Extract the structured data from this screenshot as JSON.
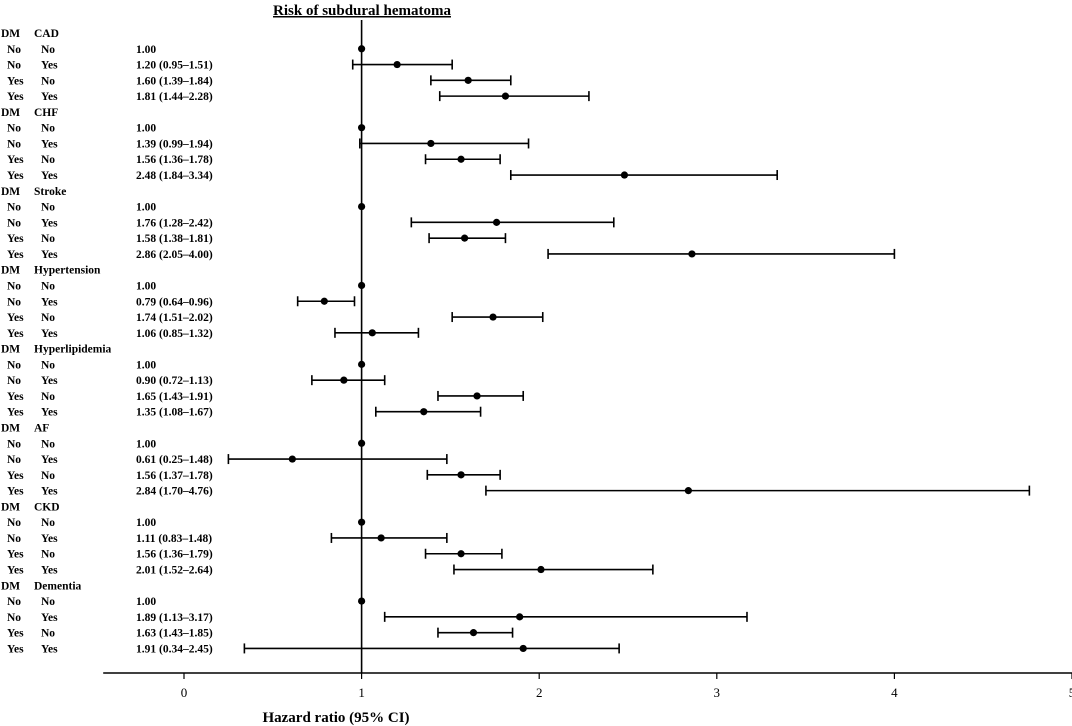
{
  "chart_data": {
    "type": "forest",
    "title": "Risk of subdural hematoma",
    "xlabel": "Hazard ratio (95% CI)",
    "xlim": [
      -0.5,
      5
    ],
    "xticks": [
      0,
      1,
      2,
      3,
      4,
      5
    ],
    "reference_line": 1,
    "column_header": "DM",
    "groups": [
      {
        "header": "CAD",
        "rows": [
          {
            "dm": "No",
            "cov": "No",
            "label": "1.00",
            "hr": 1.0,
            "lo": null,
            "hi": null
          },
          {
            "dm": "No",
            "cov": "Yes",
            "label": "1.20 (0.95–1.51)",
            "hr": 1.2,
            "lo": 0.95,
            "hi": 1.51
          },
          {
            "dm": "Yes",
            "cov": "No",
            "label": "1.60 (1.39–1.84)",
            "hr": 1.6,
            "lo": 1.39,
            "hi": 1.84
          },
          {
            "dm": "Yes",
            "cov": "Yes",
            "label": "1.81 (1.44–2.28)",
            "hr": 1.81,
            "lo": 1.44,
            "hi": 2.28
          }
        ]
      },
      {
        "header": "CHF",
        "rows": [
          {
            "dm": "No",
            "cov": "No",
            "label": "1.00",
            "hr": 1.0,
            "lo": null,
            "hi": null
          },
          {
            "dm": "No",
            "cov": "Yes",
            "label": "1.39 (0.99–1.94)",
            "hr": 1.39,
            "lo": 0.99,
            "hi": 1.94
          },
          {
            "dm": "Yes",
            "cov": "No",
            "label": "1.56 (1.36–1.78)",
            "hr": 1.56,
            "lo": 1.36,
            "hi": 1.78
          },
          {
            "dm": "Yes",
            "cov": "Yes",
            "label": "2.48 (1.84–3.34)",
            "hr": 2.48,
            "lo": 1.84,
            "hi": 3.34
          }
        ]
      },
      {
        "header": "Stroke",
        "rows": [
          {
            "dm": "No",
            "cov": "No",
            "label": "1.00",
            "hr": 1.0,
            "lo": null,
            "hi": null
          },
          {
            "dm": "No",
            "cov": "Yes",
            "label": "1.76 (1.28–2.42)",
            "hr": 1.76,
            "lo": 1.28,
            "hi": 2.42
          },
          {
            "dm": "Yes",
            "cov": "No",
            "label": "1.58 (1.38–1.81)",
            "hr": 1.58,
            "lo": 1.38,
            "hi": 1.81
          },
          {
            "dm": "Yes",
            "cov": "Yes",
            "label": "2.86 (2.05–4.00)",
            "hr": 2.86,
            "lo": 2.05,
            "hi": 4.0
          }
        ]
      },
      {
        "header": "Hypertension",
        "rows": [
          {
            "dm": "No",
            "cov": "No",
            "label": "1.00",
            "hr": 1.0,
            "lo": null,
            "hi": null
          },
          {
            "dm": "No",
            "cov": "Yes",
            "label": "0.79 (0.64–0.96)",
            "hr": 0.79,
            "lo": 0.64,
            "hi": 0.96
          },
          {
            "dm": "Yes",
            "cov": "No",
            "label": "1.74 (1.51–2.02)",
            "hr": 1.74,
            "lo": 1.51,
            "hi": 2.02
          },
          {
            "dm": "Yes",
            "cov": "Yes",
            "label": "1.06 (0.85–1.32)",
            "hr": 1.06,
            "lo": 0.85,
            "hi": 1.32
          }
        ]
      },
      {
        "header": "Hyperlipidemia",
        "rows": [
          {
            "dm": "No",
            "cov": "No",
            "label": "1.00",
            "hr": 1.0,
            "lo": null,
            "hi": null
          },
          {
            "dm": "No",
            "cov": "Yes",
            "label": "0.90 (0.72–1.13)",
            "hr": 0.9,
            "lo": 0.72,
            "hi": 1.13
          },
          {
            "dm": "Yes",
            "cov": "No",
            "label": "1.65 (1.43–1.91)",
            "hr": 1.65,
            "lo": 1.43,
            "hi": 1.91
          },
          {
            "dm": "Yes",
            "cov": "Yes",
            "label": "1.35 (1.08–1.67)",
            "hr": 1.35,
            "lo": 1.08,
            "hi": 1.67
          }
        ]
      },
      {
        "header": "AF",
        "rows": [
          {
            "dm": "No",
            "cov": "No",
            "label": "1.00",
            "hr": 1.0,
            "lo": null,
            "hi": null
          },
          {
            "dm": "No",
            "cov": "Yes",
            "label": "0.61 (0.25–1.48)",
            "hr": 0.61,
            "lo": 0.25,
            "hi": 1.48
          },
          {
            "dm": "Yes",
            "cov": "No",
            "label": "1.56 (1.37–1.78)",
            "hr": 1.56,
            "lo": 1.37,
            "hi": 1.78
          },
          {
            "dm": "Yes",
            "cov": "Yes",
            "label": "2.84 (1.70–4.76)",
            "hr": 2.84,
            "lo": 1.7,
            "hi": 4.76
          }
        ]
      },
      {
        "header": "CKD",
        "rows": [
          {
            "dm": "No",
            "cov": "No",
            "label": "1.00",
            "hr": 1.0,
            "lo": null,
            "hi": null
          },
          {
            "dm": "No",
            "cov": "Yes",
            "label": "1.11 (0.83–1.48)",
            "hr": 1.11,
            "lo": 0.83,
            "hi": 1.48
          },
          {
            "dm": "Yes",
            "cov": "No",
            "label": "1.56 (1.36–1.79)",
            "hr": 1.56,
            "lo": 1.36,
            "hi": 1.79
          },
          {
            "dm": "Yes",
            "cov": "Yes",
            "label": "2.01 (1.52–2.64)",
            "hr": 2.01,
            "lo": 1.52,
            "hi": 2.64
          }
        ]
      },
      {
        "header": "Dementia",
        "rows": [
          {
            "dm": "No",
            "cov": "No",
            "label": "1.00",
            "hr": 1.0,
            "lo": null,
            "hi": null
          },
          {
            "dm": "No",
            "cov": "Yes",
            "label": "1.89 (1.13–3.17)",
            "hr": 1.89,
            "lo": 1.13,
            "hi": 3.17
          },
          {
            "dm": "Yes",
            "cov": "No",
            "label": "1.63 (1.43–1.85)",
            "hr": 1.63,
            "lo": 1.43,
            "hi": 1.85
          },
          {
            "dm": "Yes",
            "cov": "Yes",
            "label": "1.91 (0.34–2.45)",
            "hr": 1.91,
            "lo": 0.34,
            "hi": 2.45
          }
        ]
      }
    ],
    "grid": false
  }
}
